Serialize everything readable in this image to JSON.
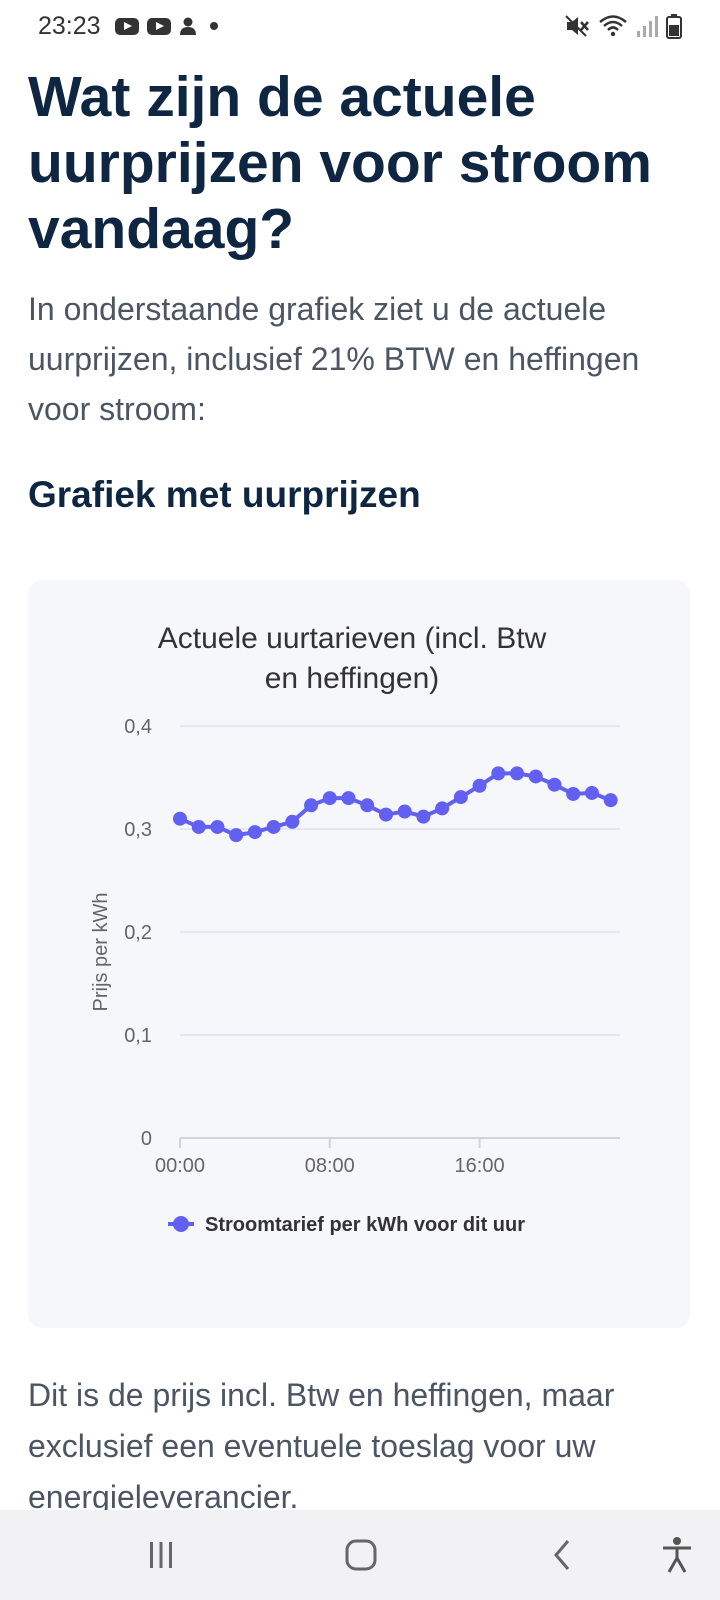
{
  "status_bar": {
    "time": "23:23",
    "icons": [
      "youtube-icon",
      "youtube-icon",
      "person-icon",
      "dot-icon",
      "mute-icon",
      "wifi-icon",
      "signal-icon",
      "battery-icon"
    ]
  },
  "article": {
    "title": "Wat zijn de actuele uurprijzen voor stroom vandaag?",
    "intro": "In onderstaande grafiek ziet u de actuele uurprijzen, inclusief 21% BTW en heffingen voor stroom:",
    "section_title": "Grafiek met uurprijzen",
    "outro": "Dit is de prijs incl. Btw en heffingen, maar exclusief een eventuele toeslag voor uw energieleverancier."
  },
  "chart_data": {
    "type": "line",
    "title_lines": [
      "Actuele uurtarieven (incl. Btw",
      "en heffingen)"
    ],
    "ylabel": "Prijs per kWh",
    "xlabel": "",
    "ylim": [
      0,
      0.4
    ],
    "yticks": [
      "0",
      "0,1",
      "0,2",
      "0,3",
      "0,4"
    ],
    "xlim": [
      0,
      23.5
    ],
    "xticks": [
      {
        "value": 0,
        "label": "00:00"
      },
      {
        "value": 8,
        "label": "08:00"
      },
      {
        "value": 16,
        "label": "16:00"
      }
    ],
    "grid": true,
    "legend": "bottom",
    "color": "#6260f0",
    "series": [
      {
        "name": "Stroomtarief per kWh voor dit uur",
        "x": [
          0,
          1,
          2,
          3,
          4,
          5,
          6,
          7,
          8,
          9,
          10,
          11,
          12,
          13,
          14,
          15,
          16,
          17,
          18,
          19,
          20,
          21,
          22,
          23
        ],
        "values": [
          0.31,
          0.302,
          0.302,
          0.294,
          0.297,
          0.302,
          0.307,
          0.323,
          0.33,
          0.33,
          0.323,
          0.314,
          0.317,
          0.312,
          0.32,
          0.331,
          0.342,
          0.354,
          0.354,
          0.351,
          0.343,
          0.334,
          0.335,
          0.328
        ]
      }
    ]
  },
  "nav_bar": {
    "buttons": [
      "recent-apps",
      "home",
      "back",
      "accessibility"
    ]
  }
}
